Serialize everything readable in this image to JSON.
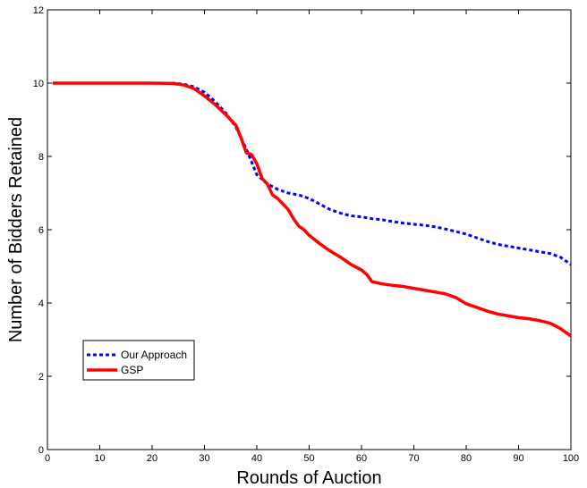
{
  "chart_data": {
    "type": "line",
    "title": "",
    "xlabel": "Rounds of Auction",
    "ylabel": "Number of Bidders Retained",
    "xlim": [
      0,
      100
    ],
    "ylim": [
      0,
      12
    ],
    "xticks": [
      0,
      10,
      20,
      30,
      40,
      50,
      60,
      70,
      80,
      90,
      100
    ],
    "yticks": [
      0,
      2,
      4,
      6,
      8,
      10,
      12
    ],
    "grid": false,
    "legend_position": "lower-left",
    "series": [
      {
        "name": "Our Approach",
        "color": "#0000ff",
        "style": "dotted",
        "x": [
          1,
          5,
          10,
          15,
          20,
          24,
          26,
          28,
          30,
          32,
          34,
          36,
          38,
          40,
          42,
          44,
          46,
          48,
          50,
          52,
          54,
          56,
          58,
          60,
          62,
          64,
          66,
          68,
          70,
          72,
          74,
          76,
          78,
          80,
          82,
          84,
          86,
          88,
          90,
          92,
          94,
          96,
          98,
          100
        ],
        "y": [
          10,
          10,
          10,
          10,
          10,
          10,
          9.97,
          9.9,
          9.75,
          9.5,
          9.2,
          8.8,
          8.2,
          7.5,
          7.25,
          7.1,
          7.0,
          6.95,
          6.85,
          6.7,
          6.55,
          6.45,
          6.38,
          6.35,
          6.3,
          6.27,
          6.22,
          6.18,
          6.15,
          6.12,
          6.08,
          6.02,
          5.95,
          5.88,
          5.78,
          5.68,
          5.6,
          5.55,
          5.5,
          5.45,
          5.4,
          5.35,
          5.25,
          5.05
        ]
      },
      {
        "name": "GSP",
        "color": "#ff0000",
        "style": "solid",
        "x": [
          1,
          5,
          10,
          15,
          20,
          24,
          26,
          28,
          30,
          32,
          34,
          36,
          37,
          38,
          39,
          40,
          41,
          42,
          43,
          44,
          45,
          46,
          47,
          48,
          49,
          50,
          52,
          54,
          56,
          58,
          60,
          61,
          62,
          64,
          66,
          68,
          70,
          72,
          74,
          76,
          78,
          80,
          82,
          84,
          86,
          88,
          90,
          92,
          94,
          96,
          97,
          98,
          99,
          100
        ],
        "y": [
          10,
          10,
          10,
          10,
          10,
          9.99,
          9.95,
          9.85,
          9.65,
          9.42,
          9.15,
          8.85,
          8.5,
          8.1,
          8.05,
          7.8,
          7.4,
          7.25,
          6.95,
          6.85,
          6.7,
          6.55,
          6.3,
          6.1,
          6.0,
          5.85,
          5.62,
          5.42,
          5.25,
          5.05,
          4.9,
          4.78,
          4.58,
          4.52,
          4.48,
          4.45,
          4.4,
          4.35,
          4.3,
          4.25,
          4.15,
          3.98,
          3.88,
          3.78,
          3.7,
          3.65,
          3.6,
          3.57,
          3.52,
          3.45,
          3.38,
          3.3,
          3.2,
          3.1
        ]
      }
    ]
  }
}
